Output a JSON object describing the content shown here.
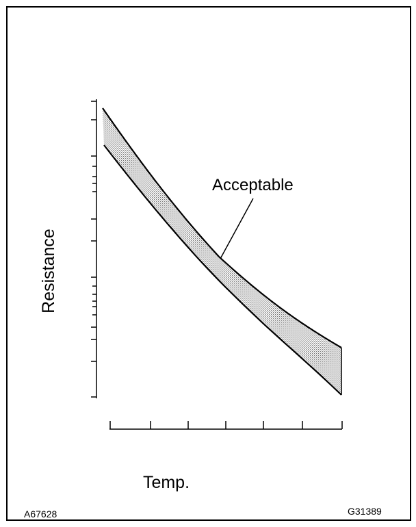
{
  "diagram": {
    "band_label": "Acceptable",
    "y_label": "Resistance",
    "x_label": "Temp.",
    "code_left": "A67628",
    "code_right": "G31389"
  }
}
